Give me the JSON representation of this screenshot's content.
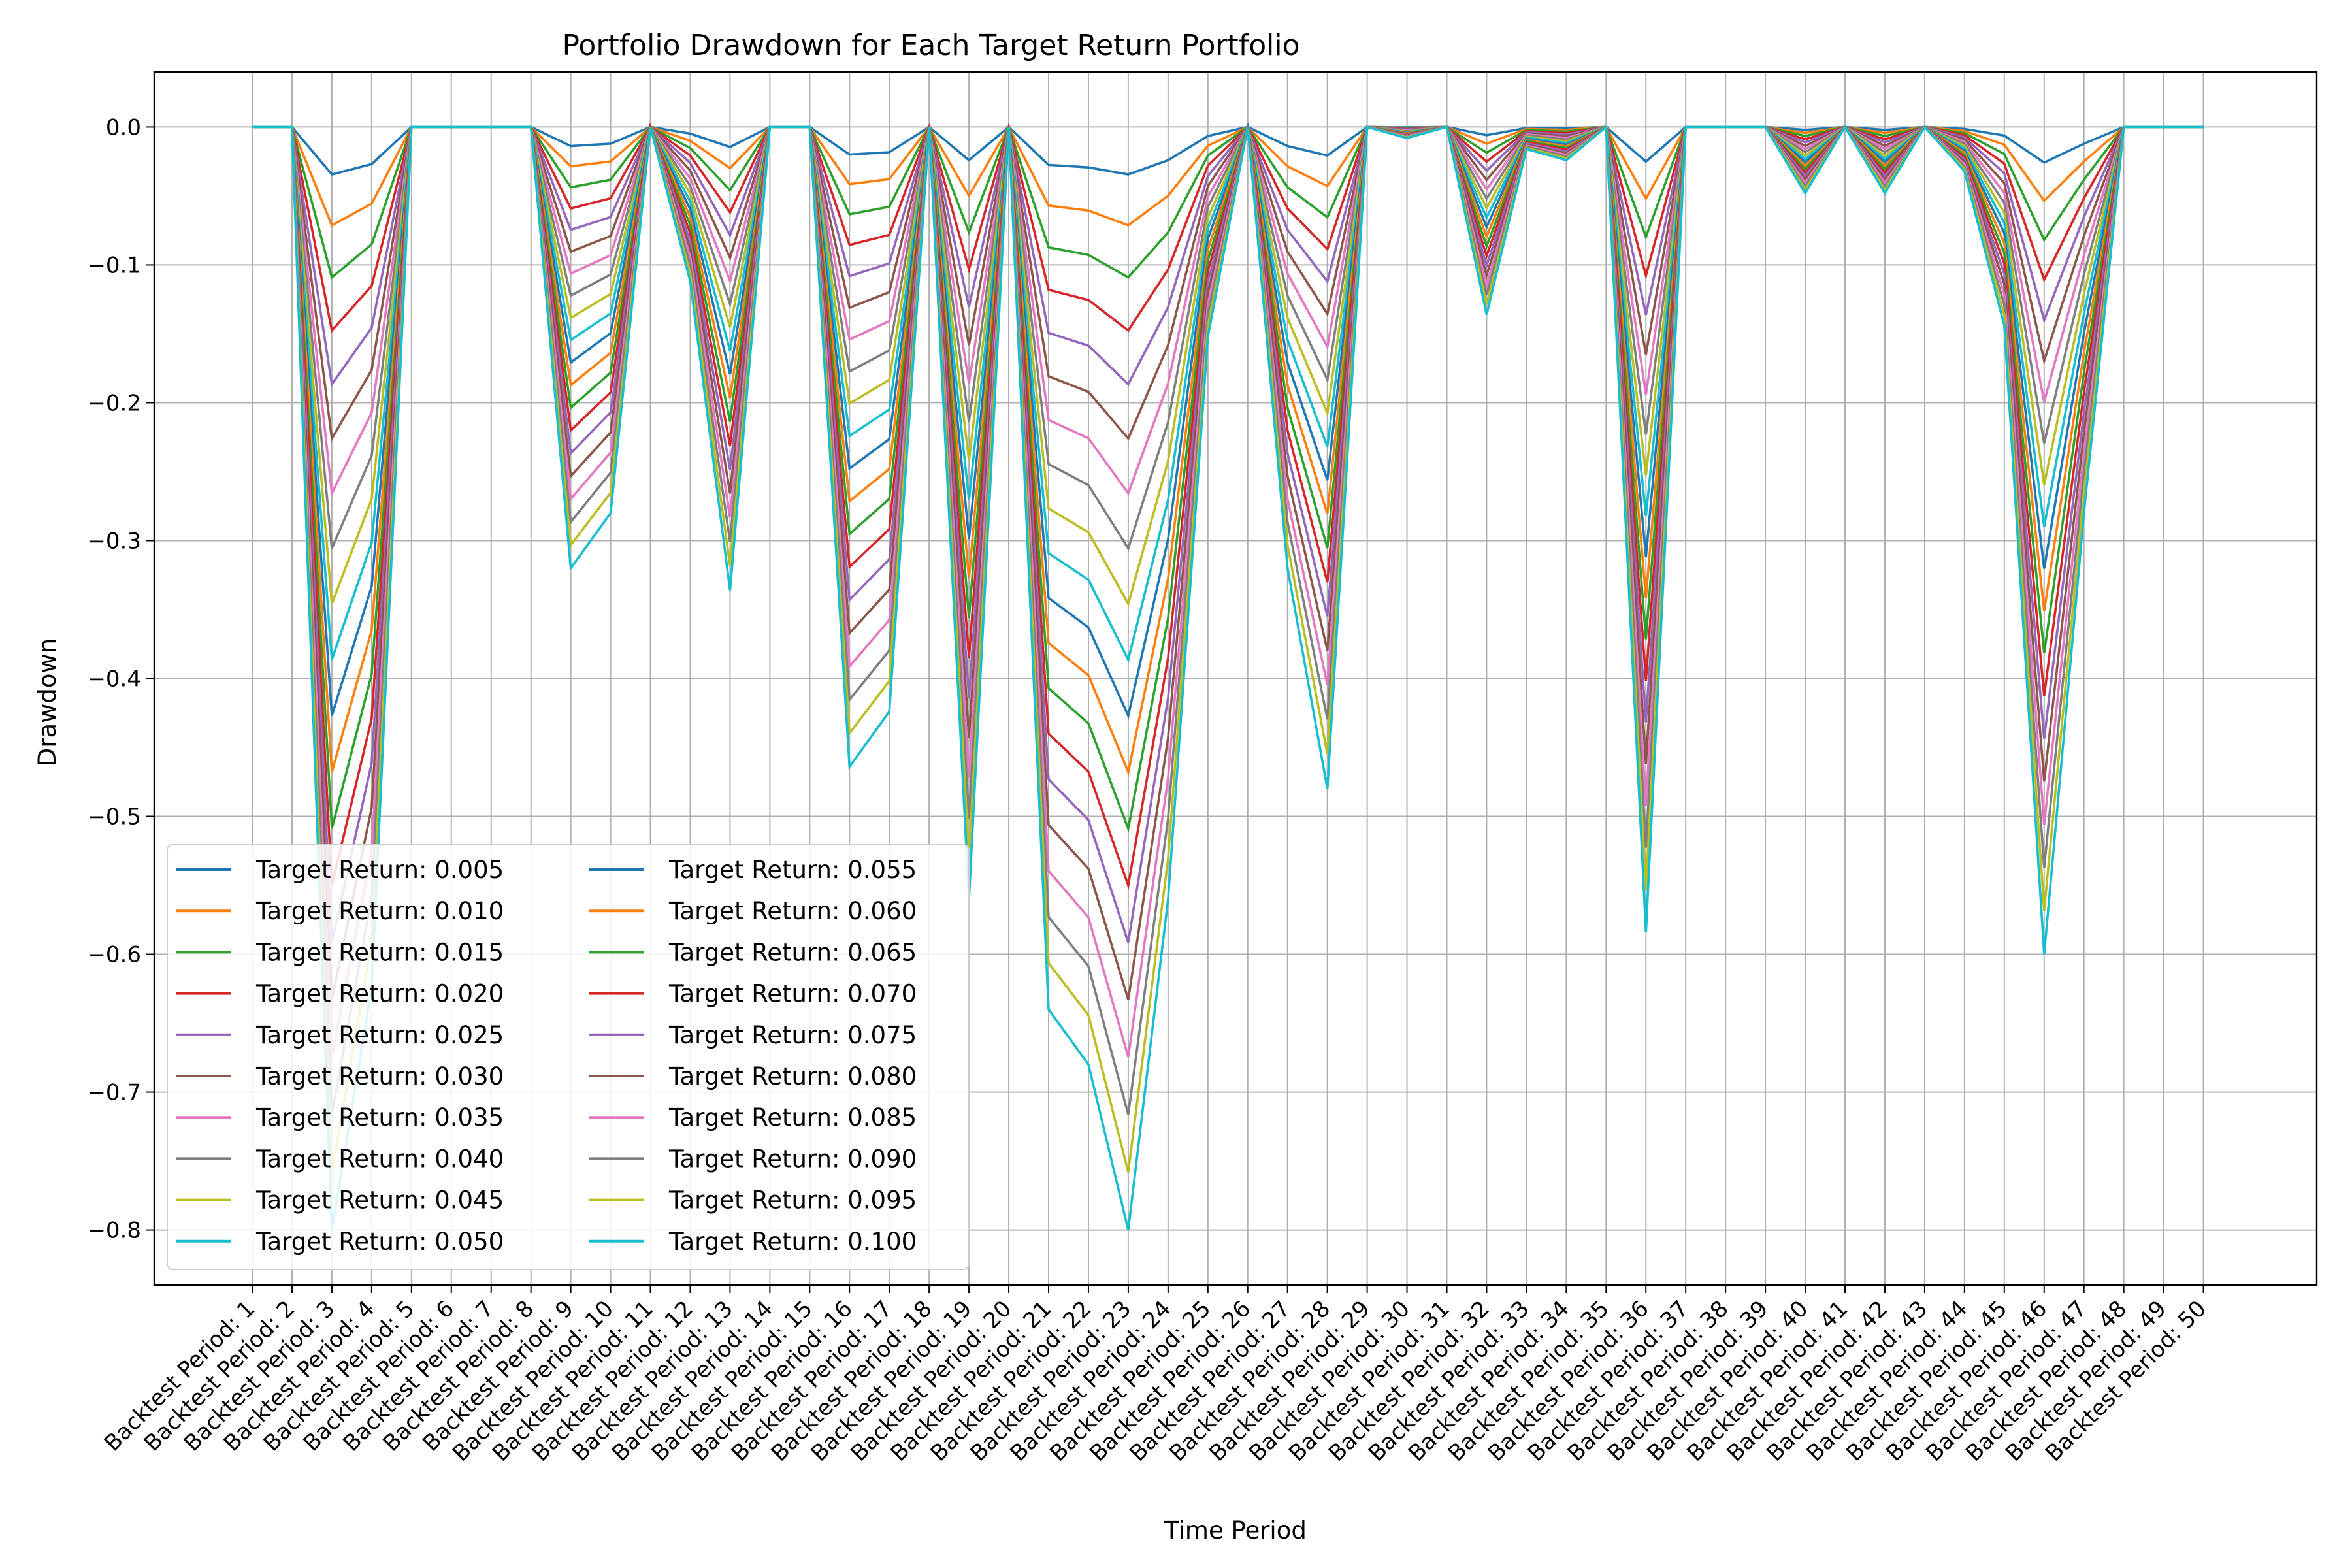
{
  "chart_data": {
    "type": "line",
    "title": "Portfolio Drawdown for Each Target Return Portfolio",
    "xlabel": "Time Period",
    "ylabel": "Drawdown",
    "ylim": [
      -0.84,
      0.04
    ],
    "yticks": [
      0.0,
      -0.1,
      -0.2,
      -0.3,
      -0.4,
      -0.5,
      -0.6,
      -0.7,
      -0.8
    ],
    "ytick_labels": [
      "0.0",
      "−0.1",
      "−0.2",
      "−0.3",
      "−0.4",
      "−0.5",
      "−0.6",
      "−0.7",
      "−0.8"
    ],
    "grid": true,
    "legend_position": "lower-left",
    "legend_columns": 2,
    "colors": [
      "#1f77b4",
      "#ff7f0e",
      "#2ca02c",
      "#d62728",
      "#9467bd",
      "#8c564b",
      "#e377c2",
      "#7f7f7f",
      "#bcbd22",
      "#17becf"
    ],
    "categories": [
      "Backtest Period: 1",
      "Backtest Period: 2",
      "Backtest Period: 3",
      "Backtest Period: 4",
      "Backtest Period: 5",
      "Backtest Period: 6",
      "Backtest Period: 7",
      "Backtest Period: 8",
      "Backtest Period: 9",
      "Backtest Period: 10",
      "Backtest Period: 11",
      "Backtest Period: 12",
      "Backtest Period: 13",
      "Backtest Period: 14",
      "Backtest Period: 15",
      "Backtest Period: 16",
      "Backtest Period: 17",
      "Backtest Period: 18",
      "Backtest Period: 19",
      "Backtest Period: 20",
      "Backtest Period: 21",
      "Backtest Period: 22",
      "Backtest Period: 23",
      "Backtest Period: 24",
      "Backtest Period: 25",
      "Backtest Period: 26",
      "Backtest Period: 27",
      "Backtest Period: 28",
      "Backtest Period: 29",
      "Backtest Period: 30",
      "Backtest Period: 31",
      "Backtest Period: 32",
      "Backtest Period: 33",
      "Backtest Period: 34",
      "Backtest Period: 35",
      "Backtest Period: 36",
      "Backtest Period: 37",
      "Backtest Period: 38",
      "Backtest Period: 39",
      "Backtest Period: 40",
      "Backtest Period: 41",
      "Backtest Period: 42",
      "Backtest Period: 43",
      "Backtest Period: 44",
      "Backtest Period: 45",
      "Backtest Period: 46",
      "Backtest Period: 47",
      "Backtest Period: 48",
      "Backtest Period: 49",
      "Backtest Period: 50"
    ],
    "series_names": [
      "Target Return: 0.005",
      "Target Return: 0.010",
      "Target Return: 0.015",
      "Target Return: 0.020",
      "Target Return: 0.025",
      "Target Return: 0.030",
      "Target Return: 0.035",
      "Target Return: 0.040",
      "Target Return: 0.045",
      "Target Return: 0.050",
      "Target Return: 0.055",
      "Target Return: 0.060",
      "Target Return: 0.065",
      "Target Return: 0.070",
      "Target Return: 0.075",
      "Target Return: 0.080",
      "Target Return: 0.085",
      "Target Return: 0.090",
      "Target Return: 0.095",
      "Target Return: 0.100"
    ],
    "drawdown_profile": [
      0,
      0,
      -1.0,
      -0.78,
      0,
      0,
      0,
      0,
      -0.4,
      -0.35,
      0,
      -0.14,
      -0.42,
      0,
      0,
      -0.58,
      -0.53,
      0,
      -0.7,
      0,
      -0.8,
      -0.85,
      -1.0,
      -0.7,
      -0.19,
      0,
      -0.4,
      -0.6,
      0,
      -0.01,
      0,
      -0.17,
      -0.02,
      -0.03,
      0,
      -0.73,
      0,
      0,
      0,
      -0.06,
      0,
      -0.06,
      0,
      -0.04,
      -0.18,
      -0.75,
      -0.35,
      0,
      0,
      0
    ],
    "peak_depth_strongest": 0.8
  }
}
